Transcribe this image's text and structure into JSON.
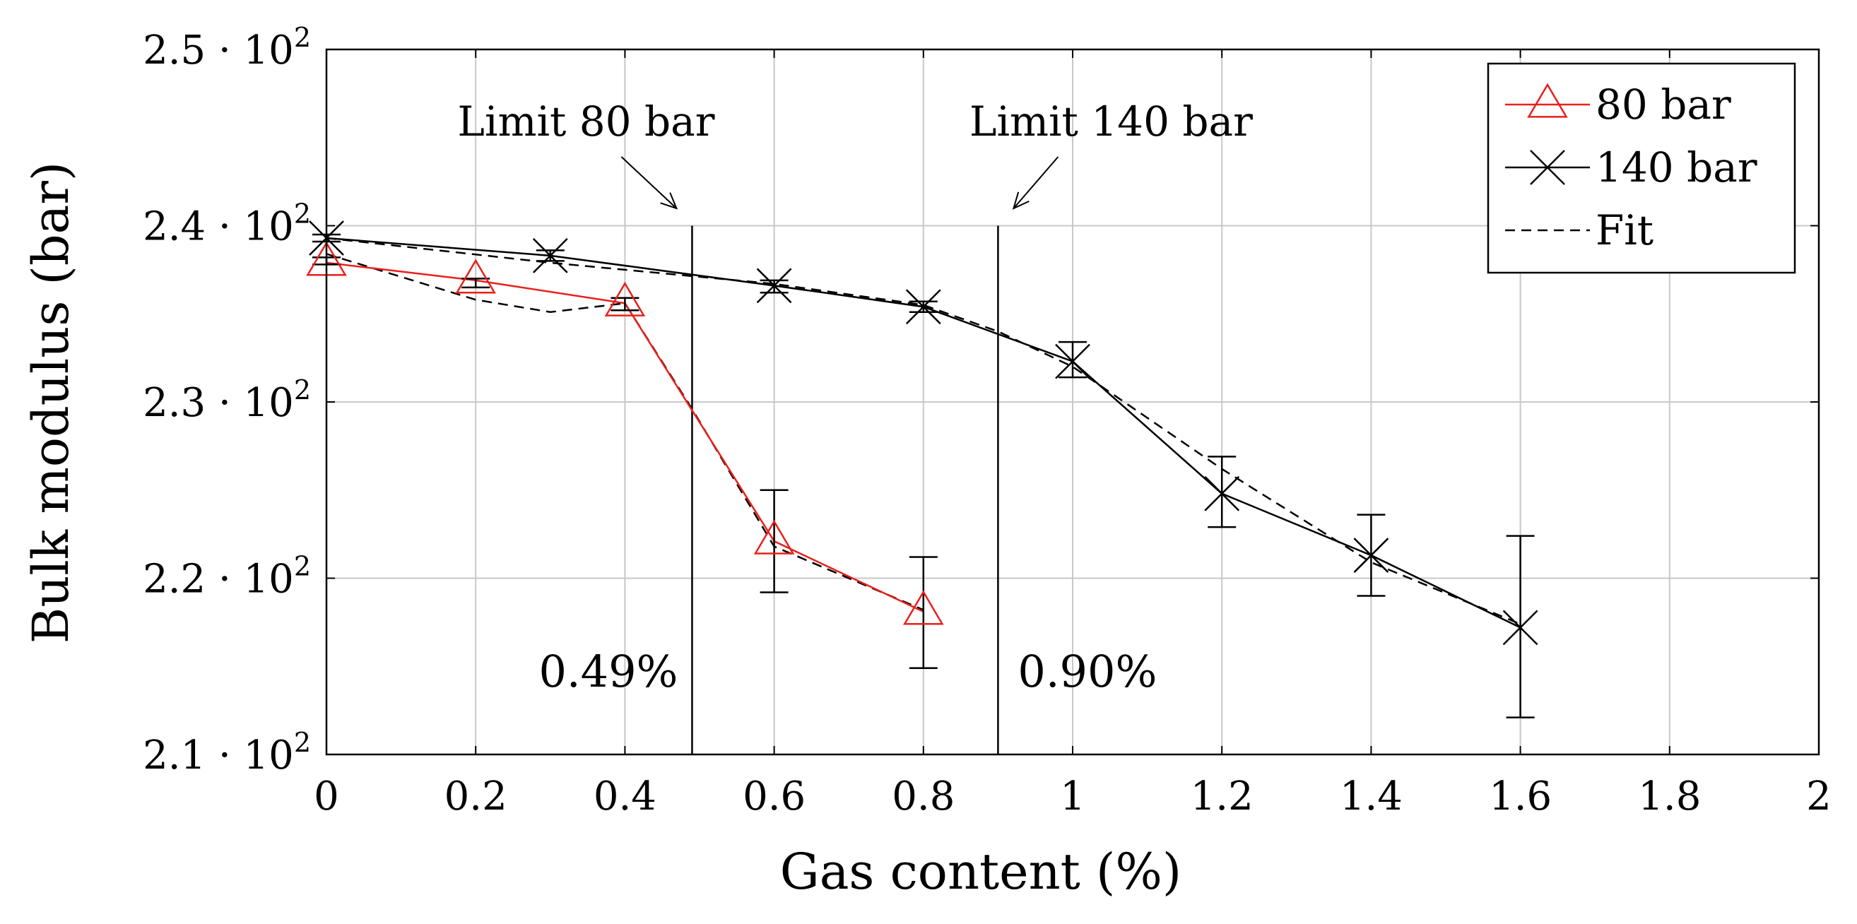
{
  "chart_data": {
    "type": "line",
    "title": "",
    "xlabel": "Gas content (%)",
    "ylabel": "Bulk modulus (bar)",
    "xlim": [
      0,
      2
    ],
    "ylim": [
      210,
      250
    ],
    "grid": true,
    "legend_position": "top-right",
    "x_ticks": [
      {
        "value": 0,
        "label": "0"
      },
      {
        "value": 0.2,
        "label": "0.2"
      },
      {
        "value": 0.4,
        "label": "0.4"
      },
      {
        "value": 0.6,
        "label": "0.6"
      },
      {
        "value": 0.8,
        "label": "0.8"
      },
      {
        "value": 1,
        "label": "1"
      },
      {
        "value": 1.2,
        "label": "1.2"
      },
      {
        "value": 1.4,
        "label": "1.4"
      },
      {
        "value": 1.6,
        "label": "1.6"
      },
      {
        "value": 1.8,
        "label": "1.8"
      },
      {
        "value": 2,
        "label": "2"
      }
    ],
    "y_ticks": [
      {
        "value": 210,
        "mantissa": "2.1",
        "base": "10",
        "exp": "2"
      },
      {
        "value": 220,
        "mantissa": "2.2",
        "base": "10",
        "exp": "2"
      },
      {
        "value": 230,
        "mantissa": "2.3",
        "base": "10",
        "exp": "2"
      },
      {
        "value": 240,
        "mantissa": "2.4",
        "base": "10",
        "exp": "2"
      },
      {
        "value": 250,
        "mantissa": "2.5",
        "base": "10",
        "exp": "2"
      }
    ],
    "series": [
      {
        "name": "80 bar",
        "marker": "triangle",
        "color": "#e8201c",
        "x": [
          0,
          0.2,
          0.4,
          0.6,
          0.8
        ],
        "y": [
          237.9,
          236.9,
          235.6,
          222.1,
          218.1
        ],
        "err_low": [
          237.8,
          236.5,
          235.2,
          219.2,
          214.9
        ],
        "err_high": [
          238.2,
          237.0,
          235.9,
          225.0,
          221.2
        ]
      },
      {
        "name": "140 bar",
        "marker": "x",
        "color": "#000000",
        "x": [
          0,
          0.3,
          0.6,
          0.8,
          1.0,
          1.2,
          1.4,
          1.6
        ],
        "y": [
          239.3,
          238.3,
          236.6,
          235.4,
          232.3,
          224.8,
          221.3,
          217.2
        ],
        "err_low": [
          239.1,
          238.0,
          236.2,
          235.1,
          231.4,
          222.9,
          219.0,
          212.1
        ],
        "err_high": [
          239.5,
          238.6,
          236.9,
          235.7,
          233.4,
          226.9,
          223.6,
          222.4
        ]
      },
      {
        "name": "Fit",
        "style": "dashed",
        "color": "#000000",
        "curves": [
          {
            "x": [
              0,
              0.2,
              0.3,
              0.4,
              0.49,
              0.6,
              0.8
            ],
            "y": [
              238.4,
              235.8,
              235.1,
              235.6,
              229.6,
              221.8,
              218.2
            ]
          },
          {
            "x": [
              0,
              0.3,
              0.6,
              0.8,
              0.9,
              1.0,
              1.2,
              1.4,
              1.6
            ],
            "y": [
              239.3,
              237.9,
              236.7,
              235.5,
              234.0,
              232.0,
              226.2,
              220.9,
              217.4
            ]
          }
        ]
      }
    ],
    "vertical_lines": [
      {
        "x": 0.49,
        "ymin": 210,
        "ymax": 240,
        "label": "Limit 80 bar",
        "value_label": "0.49%"
      },
      {
        "x": 0.9,
        "ymin": 210,
        "ymax": 240,
        "label": "Limit 140 bar",
        "value_label": "0.90%"
      }
    ]
  }
}
